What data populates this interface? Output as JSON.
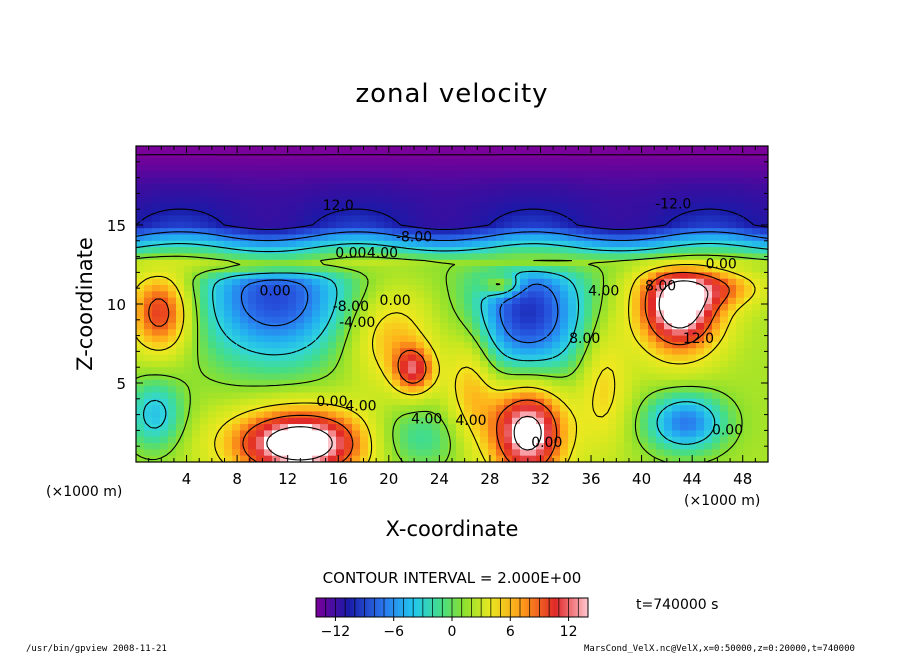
{
  "chart_data": {
    "type": "heatmap",
    "title": "zonal velocity",
    "xlabel": "X-coordinate",
    "ylabel": "Z-coordinate",
    "x_unit": "(×1000 m)",
    "y_unit": "(×1000 m)",
    "xlim": [
      0,
      50
    ],
    "ylim": [
      0,
      20
    ],
    "x_ticks": [
      4,
      8,
      12,
      16,
      20,
      24,
      28,
      32,
      36,
      40,
      44,
      48
    ],
    "y_ticks": [
      5,
      10,
      15
    ],
    "contour_interval": "CONTOUR INTERVAL = 2.000E+00",
    "colorbar": {
      "range": [
        -14,
        14
      ],
      "ticks": [
        -12,
        -6,
        0,
        6,
        12
      ]
    },
    "time_label": "t=740000 s",
    "contour_labels": [
      "12.0",
      "-8.00",
      "-12.0",
      "0.00",
      "4.00",
      "8.00",
      "-8.00",
      "-4.00",
      "4.00",
      "0.00",
      "4.00",
      "4.00",
      "8.00",
      "12.0",
      "0.00",
      "4.00",
      "0.00",
      "0.00",
      "0.00",
      "0.00"
    ],
    "blobs": [
      {
        "x": 11,
        "z": 10.5,
        "v": -11,
        "sx": 6,
        "sz": 4.2
      },
      {
        "x": 31,
        "z": 9.5,
        "v": -12,
        "sx": 4.5,
        "sz": 4.2
      },
      {
        "x": 43,
        "z": 10,
        "v": 14,
        "sx": 3.3,
        "sz": 3.1
      },
      {
        "x": 13,
        "z": 1.2,
        "v": 14,
        "sx": 5.5,
        "sz": 2.2
      },
      {
        "x": 31,
        "z": 2,
        "v": 13,
        "sx": 3,
        "sz": 3.2
      },
      {
        "x": 2,
        "z": 9.5,
        "v": 9,
        "sx": 2.5,
        "sz": 2.6
      },
      {
        "x": 22,
        "z": 5.8,
        "v": 8,
        "sx": 1.6,
        "sz": 1.5
      },
      {
        "x": 20,
        "z": 8,
        "v": 5,
        "sx": 3.5,
        "sz": 3
      },
      {
        "x": 43.5,
        "z": 2.5,
        "v": -9,
        "sx": 3,
        "sz": 1.8
      },
      {
        "x": 1.5,
        "z": 3,
        "v": -6,
        "sx": 2.2,
        "sz": 2.2
      },
      {
        "x": 26.5,
        "z": 5,
        "v": 5,
        "sx": 2,
        "sz": 4
      },
      {
        "x": 22,
        "z": 1.5,
        "v": -4,
        "sx": 4,
        "sz": 2
      },
      {
        "x": 37,
        "z": 5,
        "v": 4,
        "sx": 2,
        "sz": 4
      },
      {
        "x": 10,
        "z": 12.4,
        "v": 6,
        "sx": 5,
        "sz": 0.6
      },
      {
        "x": 29,
        "z": 11.2,
        "v": 7,
        "sx": 1.5,
        "sz": 0.7
      },
      {
        "x": 47,
        "z": 11,
        "v": 4,
        "sx": 3,
        "sz": 1.2
      }
    ]
  },
  "footer": {
    "left": "/usr/bin/gpview   2008-11-21",
    "right": "MarsCond_VelX.nc@VelX,x=0:50000,z=0:20000,t=740000"
  }
}
